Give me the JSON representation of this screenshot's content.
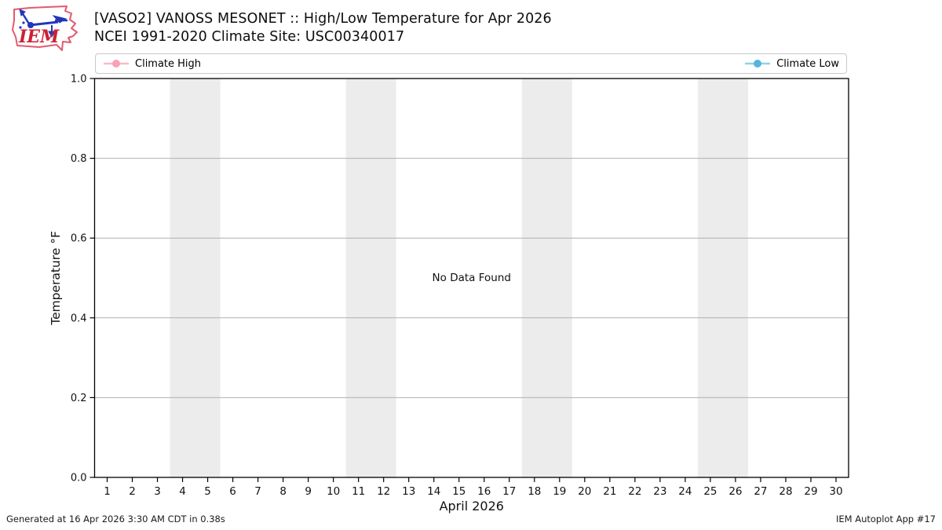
{
  "header": {
    "logo_text": "IEM"
  },
  "footer": {
    "generated": "Generated at 16 Apr 2026 3:30 AM CDT in 0.38s",
    "app": "IEM Autoplot App #17"
  },
  "chart_data": {
    "type": "line",
    "title": "[VASO2] VANOSS MESONET :: High/Low Temperature for Apr 2026",
    "subtitle": "NCEI 1991-2020 Climate Site: USC00340017",
    "xlabel": "April 2026",
    "ylabel": "Temperature °F",
    "xlim": [
      0.5,
      30.5
    ],
    "ylim": [
      0.0,
      1.0
    ],
    "yticks": [
      0.0,
      0.2,
      0.4,
      0.6,
      0.8,
      1.0
    ],
    "ytick_labels": [
      "0.0",
      "0.2",
      "0.4",
      "0.6",
      "0.8",
      "1.0"
    ],
    "xticks": [
      1,
      2,
      3,
      4,
      5,
      6,
      7,
      8,
      9,
      10,
      11,
      12,
      13,
      14,
      15,
      16,
      17,
      18,
      19,
      20,
      21,
      22,
      23,
      24,
      25,
      26,
      27,
      28,
      29,
      30
    ],
    "grid": "horizontal",
    "legend_position": "top, expanded full width",
    "series": [
      {
        "name": "Climate High",
        "line_color": "#fbb9c7",
        "marker_color": "#f8a2b5",
        "marker": "circle",
        "values": []
      },
      {
        "name": "Climate Low",
        "line_color": "#8fd1ea",
        "marker_color": "#56b4dd",
        "marker": "circle",
        "values": []
      }
    ],
    "weekend_bands_x": [
      [
        3.5,
        5.5
      ],
      [
        10.5,
        12.5
      ],
      [
        17.5,
        19.5
      ],
      [
        24.5,
        26.5
      ]
    ],
    "band_color": "#ececec",
    "grid_color": "#b0b0b0",
    "annotations": [
      {
        "text": "No Data Found",
        "x": 15.5,
        "y": 0.5
      }
    ]
  }
}
